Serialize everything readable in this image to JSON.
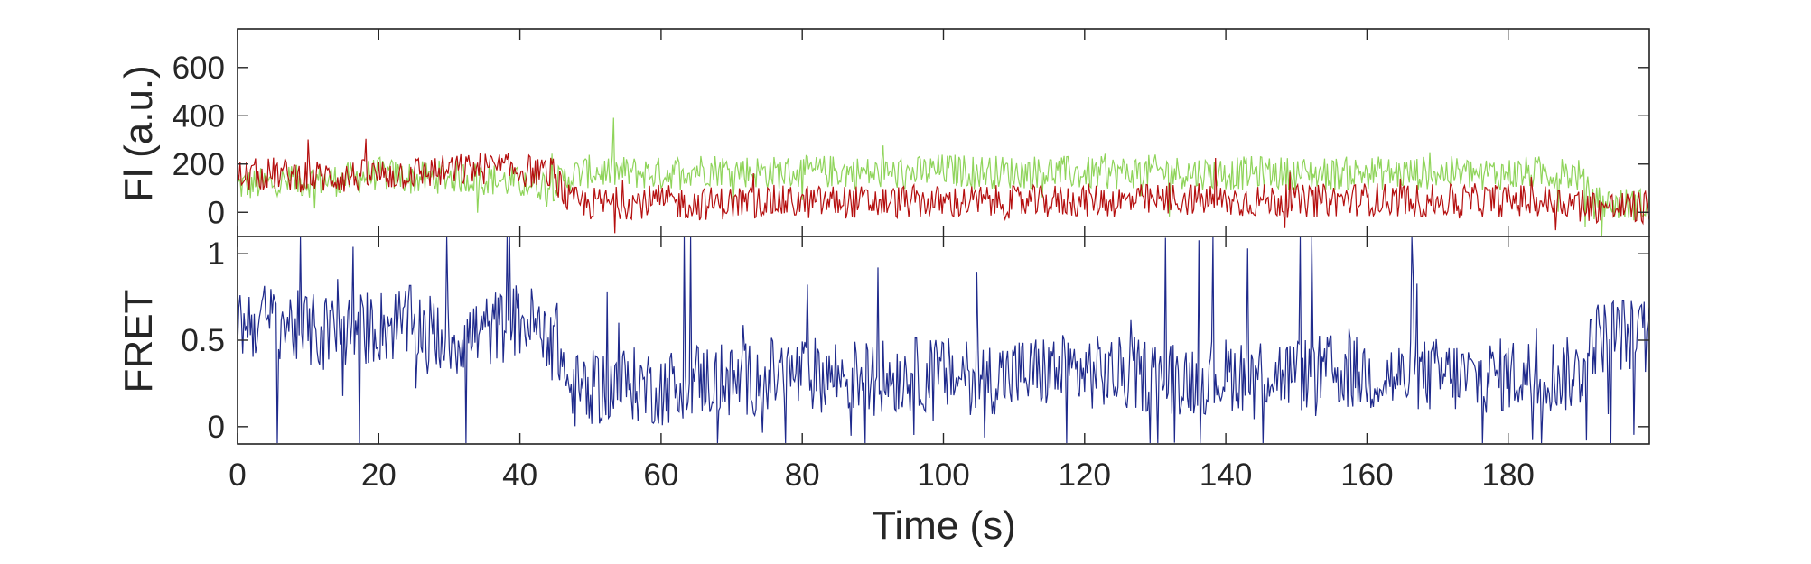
{
  "chart_data": [
    {
      "type": "line",
      "panel": "top",
      "title": "",
      "ylabel": "Fl (a.u.)",
      "xlabel": "",
      "xlim": [
        0,
        200
      ],
      "ylim": [
        -100,
        760
      ],
      "yticks": [
        0,
        200,
        400,
        600
      ],
      "ytick_labels": [
        "0",
        "200",
        "400",
        "600"
      ],
      "grid": false,
      "series": [
        {
          "color": "#8fd45a",
          "x": [
            0,
            5,
            10,
            15,
            20,
            25,
            30,
            35,
            40,
            45,
            47,
            50,
            55,
            60,
            65,
            70,
            75,
            80,
            85,
            90,
            95,
            100,
            105,
            110,
            115,
            120,
            125,
            130,
            135,
            140,
            145,
            150,
            155,
            160,
            165,
            170,
            175,
            180,
            185,
            190,
            192,
            195,
            200
          ],
          "values": [
            110,
            120,
            130,
            135,
            160,
            140,
            150,
            140,
            120,
            115,
            150,
            170,
            165,
            160,
            180,
            175,
            165,
            165,
            170,
            160,
            160,
            175,
            170,
            165,
            170,
            160,
            165,
            170,
            165,
            160,
            165,
            160,
            160,
            165,
            160,
            165,
            160,
            160,
            165,
            155,
            40,
            35,
            30
          ]
        },
        {
          "color": "#b50f0f",
          "x": [
            0,
            5,
            10,
            15,
            20,
            25,
            30,
            35,
            40,
            45,
            47,
            50,
            55,
            60,
            65,
            70,
            75,
            80,
            85,
            90,
            95,
            100,
            105,
            110,
            115,
            120,
            125,
            130,
            135,
            140,
            145,
            150,
            155,
            160,
            165,
            170,
            175,
            180,
            185,
            190,
            192,
            195,
            200
          ],
          "values": [
            150,
            160,
            150,
            145,
            155,
            165,
            170,
            185,
            175,
            160,
            40,
            35,
            40,
            45,
            35,
            40,
            45,
            40,
            45,
            40,
            45,
            40,
            45,
            40,
            45,
            50,
            45,
            50,
            55,
            45,
            50,
            45,
            50,
            55,
            50,
            45,
            50,
            50,
            45,
            40,
            25,
            20,
            20
          ]
        }
      ]
    },
    {
      "type": "line",
      "panel": "bottom",
      "title": "",
      "ylabel": "FRET",
      "xlabel": "Time (s)",
      "xlim": [
        0,
        200
      ],
      "ylim": [
        -0.1,
        1.1
      ],
      "yticks": [
        0,
        0.5,
        1
      ],
      "ytick_labels": [
        "0",
        "0.5",
        "1"
      ],
      "xticks": [
        0,
        20,
        40,
        60,
        80,
        100,
        120,
        140,
        160,
        180
      ],
      "xtick_labels": [
        "0",
        "20",
        "40",
        "60",
        "80",
        "100",
        "120",
        "140",
        "160",
        "180"
      ],
      "grid": false,
      "series": [
        {
          "color": "#1f2a8c",
          "x": [
            0,
            5,
            10,
            15,
            20,
            25,
            30,
            35,
            40,
            45,
            47,
            50,
            55,
            60,
            65,
            70,
            75,
            80,
            85,
            90,
            95,
            100,
            105,
            110,
            115,
            120,
            125,
            130,
            135,
            140,
            145,
            150,
            155,
            160,
            165,
            170,
            175,
            180,
            185,
            190,
            192,
            195,
            200
          ],
          "values": [
            0.6,
            0.62,
            0.55,
            0.55,
            0.58,
            0.6,
            0.5,
            0.55,
            0.62,
            0.55,
            0.2,
            0.22,
            0.25,
            0.22,
            0.28,
            0.25,
            0.3,
            0.3,
            0.3,
            0.28,
            0.3,
            0.3,
            0.28,
            0.3,
            0.32,
            0.32,
            0.3,
            0.3,
            0.28,
            0.3,
            0.32,
            0.3,
            0.32,
            0.3,
            0.28,
            0.3,
            0.28,
            0.3,
            0.3,
            0.3,
            0.5,
            0.55,
            0.5
          ]
        }
      ]
    }
  ]
}
